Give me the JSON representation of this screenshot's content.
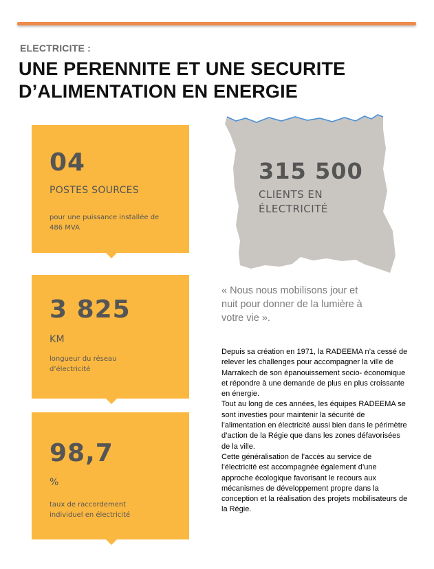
{
  "header": {
    "kicker": "ELECTRICITE :",
    "title_line1": "UNE PERENNITE ET UNE SECURITE",
    "title_line2": "D’ALIMENTATION EN ENERGIE"
  },
  "stats": [
    {
      "value": "04",
      "unit": "POSTES SOURCES",
      "desc_line1": "pour une puissance installée de",
      "desc_line2": "486 MVA"
    },
    {
      "value": "3 825",
      "unit": "KM",
      "desc_line1": "longueur du réseau",
      "desc_line2": "d’électricité"
    },
    {
      "value": "98,7",
      "unit": "%",
      "desc_line1": "taux de raccordement",
      "desc_line2": "individuel en électricité"
    }
  ],
  "map_stat": {
    "value": "315 500",
    "label_line1": "CLIENTS EN",
    "label_line2": "ÉLECTRICITÉ"
  },
  "quote": {
    "line1": "« Nous nous mobilisons jour et",
    "line2": "nuit pour donner de la lumière à",
    "line3": "votre vie »."
  },
  "body": {
    "paragraph1": "Depuis sa création en 1971, la RADEEMA n’a cessé de relever les challenges pour accompagner la ville de Marrakech de son épanouissement socio- économique  et répondre à une demande de plus en plus croissante en énergie.",
    "paragraph2": "Tout au long de ces années, les équipes RADEEMA se sont investies pour maintenir la sécurité de l’alimentation en électricité aussi bien dans le périmètre d’action de la Régie que dans les zones défavorisées de la ville.",
    "paragraph3": "Cette généralisation de l’accès au service de l’électricité est accompagnée également d’une approche écologique  favorisant le recours aux mécanismes de développement  propre dans la conception et la réalisation des projets mobilisateurs de la Régie."
  },
  "colors": {
    "accent_rule": "#ee8a4a",
    "card": "#fbb840",
    "map": "#c9c6c2",
    "map_edge": "#4a90d9"
  }
}
